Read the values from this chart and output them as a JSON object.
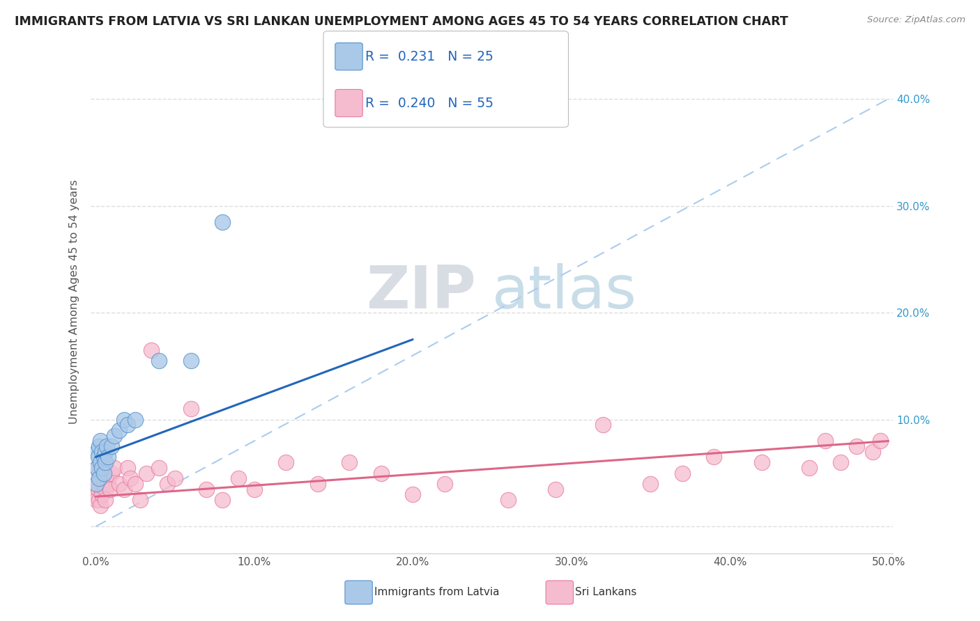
{
  "title": "IMMIGRANTS FROM LATVIA VS SRI LANKAN UNEMPLOYMENT AMONG AGES 45 TO 54 YEARS CORRELATION CHART",
  "source": "Source: ZipAtlas.com",
  "ylabel": "Unemployment Among Ages 45 to 54 years",
  "xlim": [
    -0.003,
    0.503
  ],
  "ylim": [
    -0.025,
    0.445
  ],
  "xticks": [
    0.0,
    0.1,
    0.2,
    0.3,
    0.4,
    0.5
  ],
  "xticklabels": [
    "0.0%",
    "10.0%",
    "20.0%",
    "30.0%",
    "40.0%",
    "50.0%"
  ],
  "yticks_right": [
    0.0,
    0.1,
    0.2,
    0.3,
    0.4
  ],
  "yticklabels_right": [
    "",
    "10.0%",
    "20.0%",
    "30.0%",
    "40.0%"
  ],
  "latvia_R": "0.231",
  "latvia_N": "25",
  "srilanka_R": "0.240",
  "srilanka_N": "55",
  "latvia_color": "#aac9e8",
  "srilanka_color": "#f5bcd0",
  "latvia_edge_color": "#5591cc",
  "srilanka_edge_color": "#e8789a",
  "latvia_line_color": "#2266bb",
  "srilanka_line_color": "#dd6688",
  "ref_line_color": "#aaccee",
  "legend_label_latvia": "Immigrants from Latvia",
  "legend_label_srilanka": "Sri Lankans",
  "watermark_zip": "ZIP",
  "watermark_atlas": "atlas",
  "background_color": "#ffffff",
  "latvia_trend_x0": 0.0,
  "latvia_trend_y0": 0.065,
  "latvia_trend_x1": 0.2,
  "latvia_trend_y1": 0.175,
  "srilanka_trend_x0": 0.0,
  "srilanka_trend_y0": 0.028,
  "srilanka_trend_x1": 0.5,
  "srilanka_trend_y1": 0.08,
  "latvia_x": [
    0.0005,
    0.001,
    0.001,
    0.0015,
    0.002,
    0.002,
    0.003,
    0.003,
    0.004,
    0.004,
    0.005,
    0.005,
    0.006,
    0.006,
    0.007,
    0.008,
    0.01,
    0.012,
    0.015,
    0.018,
    0.02,
    0.025,
    0.04,
    0.06,
    0.08
  ],
  "latvia_y": [
    0.04,
    0.055,
    0.07,
    0.065,
    0.045,
    0.075,
    0.06,
    0.08,
    0.055,
    0.07,
    0.065,
    0.05,
    0.07,
    0.06,
    0.075,
    0.065,
    0.075,
    0.085,
    0.09,
    0.1,
    0.095,
    0.1,
    0.155,
    0.155,
    0.285
  ],
  "srilanka_x": [
    0.0003,
    0.0005,
    0.001,
    0.001,
    0.0015,
    0.002,
    0.002,
    0.003,
    0.003,
    0.004,
    0.004,
    0.005,
    0.005,
    0.006,
    0.006,
    0.007,
    0.008,
    0.009,
    0.01,
    0.012,
    0.015,
    0.018,
    0.02,
    0.022,
    0.025,
    0.028,
    0.032,
    0.035,
    0.04,
    0.045,
    0.05,
    0.06,
    0.07,
    0.08,
    0.09,
    0.1,
    0.12,
    0.14,
    0.16,
    0.18,
    0.2,
    0.22,
    0.26,
    0.29,
    0.32,
    0.35,
    0.37,
    0.39,
    0.42,
    0.45,
    0.46,
    0.47,
    0.48,
    0.49,
    0.495
  ],
  "srilanka_y": [
    0.03,
    0.025,
    0.04,
    0.055,
    0.035,
    0.05,
    0.025,
    0.045,
    0.02,
    0.055,
    0.03,
    0.04,
    0.06,
    0.035,
    0.025,
    0.05,
    0.04,
    0.035,
    0.05,
    0.055,
    0.04,
    0.035,
    0.055,
    0.045,
    0.04,
    0.025,
    0.05,
    0.165,
    0.055,
    0.04,
    0.045,
    0.11,
    0.035,
    0.025,
    0.045,
    0.035,
    0.06,
    0.04,
    0.06,
    0.05,
    0.03,
    0.04,
    0.025,
    0.035,
    0.095,
    0.04,
    0.05,
    0.065,
    0.06,
    0.055,
    0.08,
    0.06,
    0.075,
    0.07,
    0.08
  ]
}
